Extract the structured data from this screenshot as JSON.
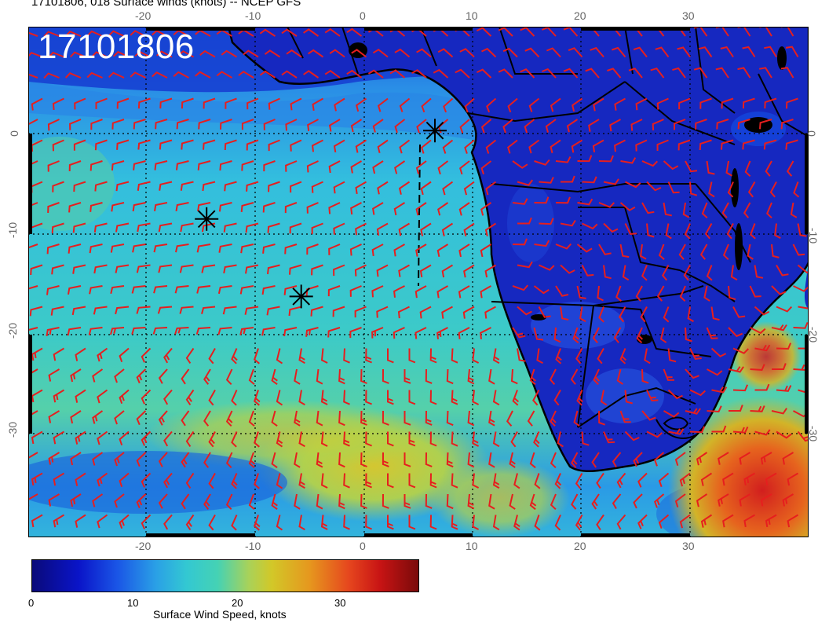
{
  "header": {
    "title": "17101806, 018 Surface winds (knots) -- NCEP GFS"
  },
  "map": {
    "stamp": "17101806",
    "lon_ticks": [
      "-20",
      "-10",
      "0",
      "10",
      "20",
      "30"
    ],
    "lat_ticks": [
      "0",
      "-10",
      "-20",
      "-30"
    ],
    "barb_color": "#e61e1e",
    "coast_color": "#000000"
  },
  "colorbar": {
    "tick_labels": [
      "0",
      "10",
      "20",
      "30"
    ],
    "title": "Surface Wind Speed, knots"
  },
  "markers": [
    {
      "name": "asterisk-marker",
      "lon": 6.5,
      "lat": 0.3
    },
    {
      "name": "asterisk-marker",
      "lon": -14.5,
      "lat": -8.5
    },
    {
      "name": "asterisk-marker",
      "lon": -5.8,
      "lat": -16.2
    }
  ]
}
